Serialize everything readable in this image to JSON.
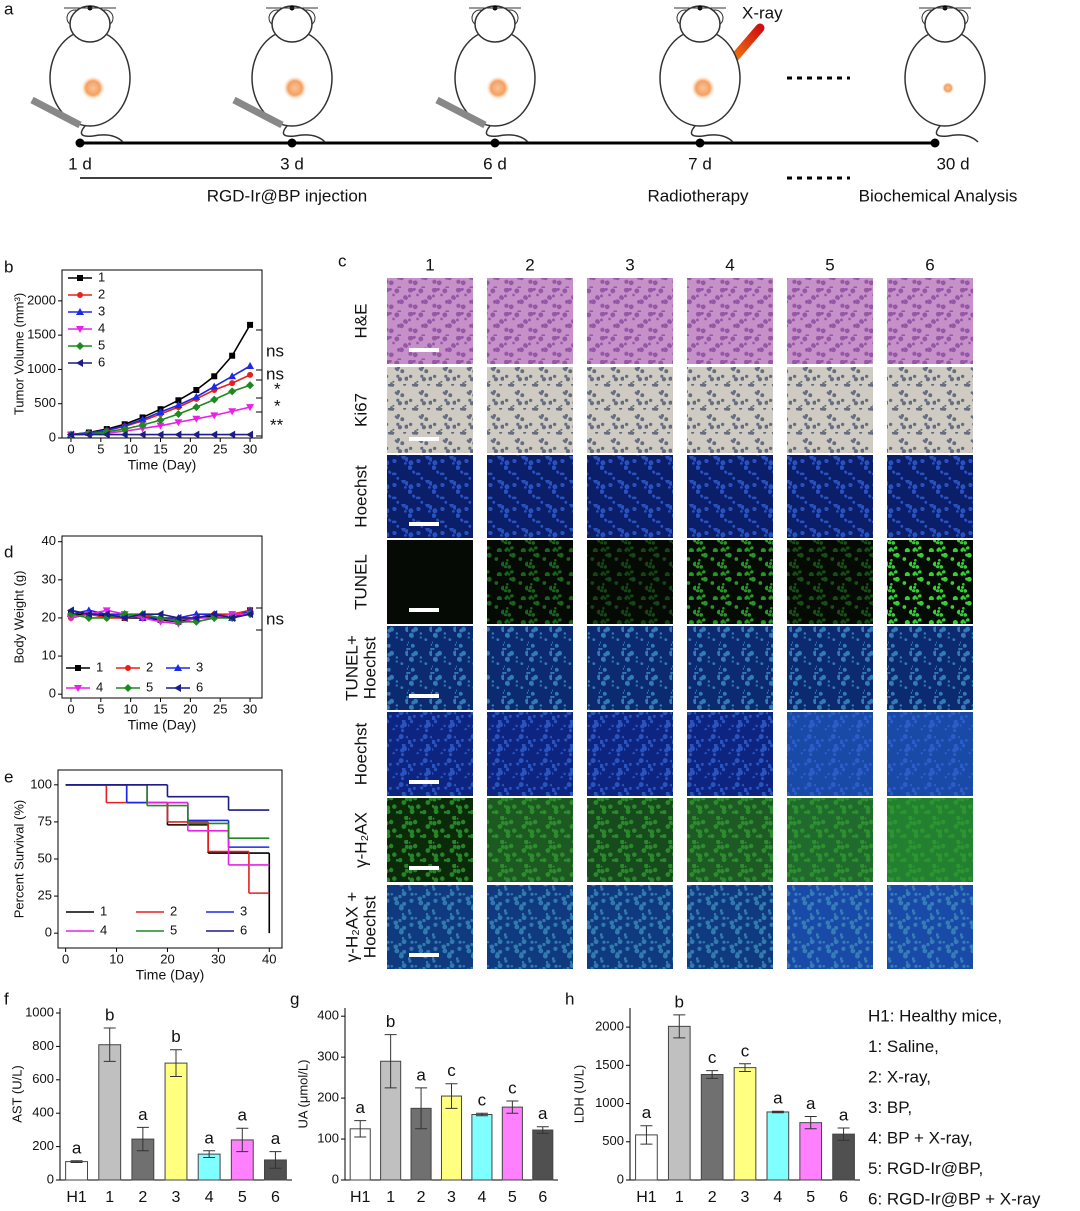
{
  "schematic": {
    "panel": "a",
    "days": [
      "1 d",
      "3 d",
      "6 d",
      "7 d",
      "30 d"
    ],
    "xray": "X-ray",
    "injection": "RGD-Ir@BP injection",
    "radiotherapy": "Radiotherapy",
    "analysis": "Biochemical Analysis"
  },
  "image_panel": {
    "panel": "c",
    "columns": [
      "1",
      "2",
      "3",
      "4",
      "5",
      "6"
    ],
    "rows": [
      [
        "H&E"
      ],
      [
        "Ki67"
      ],
      [
        "Hoechst"
      ],
      [
        "TUNEL"
      ],
      [
        "TUNEL+",
        "Hoechst"
      ],
      [
        "Hoechst"
      ],
      [
        "γ-H₂AX"
      ],
      [
        "γ-H₂AX +",
        "Hoechst"
      ]
    ]
  },
  "group_legend": [
    "H1: Healthy mice,",
    "1: Saline,",
    "2: X-ray,",
    "3: BP,",
    "4: BP + X-ray,",
    "5: RGD-Ir@BP,",
    "6: RGD-Ir@BP + X-ray"
  ],
  "chart_data": [
    {
      "type": "line",
      "panel": "b",
      "x_label": "Time (Day)",
      "y_label": "Tumor Volume (mm³)",
      "x": [
        0,
        3,
        6,
        9,
        12,
        15,
        18,
        21,
        24,
        27,
        30
      ],
      "xlim": [
        -1.5,
        32
      ],
      "ylim": [
        0,
        2450
      ],
      "xticks": [
        0,
        5,
        10,
        15,
        20,
        25,
        30
      ],
      "yticks": [
        0,
        500,
        1000,
        1500,
        2000
      ],
      "annotations": [
        "ns",
        "ns",
        "*",
        "*",
        "**"
      ],
      "series": [
        {
          "name": "1",
          "color": "#000000",
          "marker": "square",
          "values": [
            50,
            80,
            130,
            200,
            300,
            420,
            550,
            700,
            900,
            1200,
            1650
          ]
        },
        {
          "name": "2",
          "color": "#e8201c",
          "marker": "circle",
          "values": [
            50,
            70,
            110,
            170,
            250,
            350,
            450,
            570,
            700,
            800,
            920
          ]
        },
        {
          "name": "3",
          "color": "#1c2ae8",
          "marker": "up",
          "values": [
            50,
            75,
            115,
            175,
            270,
            380,
            480,
            600,
            750,
            900,
            1050
          ]
        },
        {
          "name": "4",
          "color": "#e820e8",
          "marker": "down",
          "values": [
            50,
            55,
            70,
            100,
            140,
            180,
            230,
            280,
            330,
            390,
            450
          ]
        },
        {
          "name": "5",
          "color": "#1c8a1c",
          "marker": "diamond",
          "values": [
            50,
            60,
            90,
            130,
            190,
            260,
            350,
            450,
            560,
            680,
            770
          ]
        },
        {
          "name": "6",
          "color": "#1c1c8a",
          "marker": "left",
          "values": [
            50,
            50,
            50,
            50,
            50,
            50,
            50,
            50,
            50,
            50,
            50
          ]
        }
      ]
    },
    {
      "type": "line",
      "panel": "d",
      "x_label": "Time (Day)",
      "y_label": "Body Weight (g)",
      "x": [
        0,
        3,
        6,
        9,
        12,
        15,
        18,
        21,
        24,
        27,
        30
      ],
      "xlim": [
        -1.5,
        32
      ],
      "ylim": [
        -1,
        41.5
      ],
      "xticks": [
        0,
        5,
        10,
        15,
        20,
        25,
        30
      ],
      "yticks": [
        0,
        10,
        20,
        30,
        40
      ],
      "annotations": [
        "ns"
      ],
      "series": [
        {
          "name": "1",
          "color": "#000000",
          "marker": "square",
          "values": [
            21,
            21,
            20.5,
            20,
            20,
            19.5,
            19,
            20,
            20.5,
            20,
            22
          ]
        },
        {
          "name": "2",
          "color": "#e8201c",
          "marker": "circle",
          "values": [
            20,
            21,
            20,
            20,
            20.5,
            20,
            19.5,
            20,
            21,
            21,
            22
          ]
        },
        {
          "name": "3",
          "color": "#1c2ae8",
          "marker": "up",
          "values": [
            21,
            22,
            21,
            21,
            20,
            20,
            20,
            21,
            21,
            20,
            22
          ]
        },
        {
          "name": "4",
          "color": "#e820e8",
          "marker": "down",
          "values": [
            20,
            21,
            22,
            21,
            20,
            19,
            18.5,
            20,
            20,
            21,
            21
          ]
        },
        {
          "name": "5",
          "color": "#1c8a1c",
          "marker": "diamond",
          "values": [
            21,
            20,
            20,
            21,
            21,
            20,
            19,
            19,
            20,
            20,
            21
          ]
        },
        {
          "name": "6",
          "color": "#1c1c8a",
          "marker": "left",
          "values": [
            22,
            21,
            21,
            20,
            21,
            21,
            20,
            20,
            21,
            20,
            21
          ]
        }
      ]
    },
    {
      "type": "step",
      "panel": "e",
      "x_label": "Time (Day)",
      "y_label": "Percent Survival (%)",
      "xlim": [
        -1.5,
        42.5
      ],
      "ylim": [
        -10,
        110
      ],
      "xticks": [
        0,
        10,
        20,
        30,
        40
      ],
      "yticks": [
        0,
        25,
        50,
        75,
        100
      ],
      "series": [
        {
          "name": "1",
          "color": "#000000",
          "x": [
            0,
            12,
            20,
            28,
            40
          ],
          "values": [
            100,
            88,
            73,
            54,
            0
          ]
        },
        {
          "name": "2",
          "color": "#e8201c",
          "x": [
            0,
            8,
            20,
            28,
            36,
            40
          ],
          "values": [
            100,
            88,
            75,
            55,
            27,
            27
          ]
        },
        {
          "name": "3",
          "color": "#1c2ae8",
          "x": [
            0,
            12,
            24,
            32,
            40
          ],
          "values": [
            100,
            88,
            76,
            58,
            58
          ]
        },
        {
          "name": "4",
          "color": "#e820e8",
          "x": [
            0,
            16,
            24,
            32,
            40
          ],
          "values": [
            100,
            88,
            69,
            46,
            46
          ]
        },
        {
          "name": "5",
          "color": "#1c8a1c",
          "x": [
            0,
            16,
            24,
            32,
            40
          ],
          "values": [
            100,
            86,
            74,
            64,
            64
          ]
        },
        {
          "name": "6",
          "color": "#1c1c8a",
          "x": [
            0,
            20,
            32,
            40
          ],
          "values": [
            100,
            92,
            83,
            83
          ]
        }
      ]
    },
    {
      "type": "bar",
      "panel": "f",
      "y_label": "AST (U/L)",
      "categories": [
        "H1",
        "1",
        "2",
        "3",
        "4",
        "5",
        "6"
      ],
      "values": [
        110,
        810,
        245,
        700,
        155,
        240,
        120
      ],
      "errors": [
        5,
        100,
        70,
        80,
        20,
        70,
        50
      ],
      "letters": [
        "a",
        "b",
        "a",
        "b",
        "a",
        "a",
        "a"
      ],
      "colors": [
        "#ffffff",
        "#c0c0c0",
        "#707070",
        "#ffff80",
        "#7fffff",
        "#ff80ff",
        "#505050"
      ],
      "ylim": [
        0,
        1030
      ],
      "yticks": [
        0,
        200,
        400,
        600,
        800,
        1000
      ]
    },
    {
      "type": "bar",
      "panel": "g",
      "y_label": "UA (μmol/L)",
      "categories": [
        "H1",
        "1",
        "2",
        "3",
        "4",
        "5",
        "6"
      ],
      "values": [
        125,
        290,
        175,
        205,
        160,
        178,
        122
      ],
      "errors": [
        20,
        65,
        50,
        30,
        3,
        15,
        8
      ],
      "letters": [
        "a",
        "b",
        "a",
        "c",
        "c",
        "c",
        "a"
      ],
      "colors": [
        "#ffffff",
        "#c0c0c0",
        "#707070",
        "#ffff80",
        "#7fffff",
        "#ff80ff",
        "#505050"
      ],
      "ylim": [
        0,
        420
      ],
      "yticks": [
        0,
        100,
        200,
        300,
        400
      ]
    },
    {
      "type": "bar",
      "panel": "h",
      "y_label": "LDH (U/L)",
      "categories": [
        "H1",
        "1",
        "2",
        "3",
        "4",
        "5",
        "6"
      ],
      "values": [
        590,
        2010,
        1380,
        1470,
        890,
        750,
        600
      ],
      "errors": [
        120,
        150,
        50,
        50,
        10,
        80,
        80
      ],
      "letters": [
        "a",
        "b",
        "c",
        "c",
        "a",
        "a",
        "a"
      ],
      "colors": [
        "#ffffff",
        "#c0c0c0",
        "#707070",
        "#ffff80",
        "#7fffff",
        "#ff80ff",
        "#505050"
      ],
      "ylim": [
        0,
        2250
      ],
      "yticks": [
        0,
        500,
        1000,
        1500,
        2000
      ]
    }
  ]
}
